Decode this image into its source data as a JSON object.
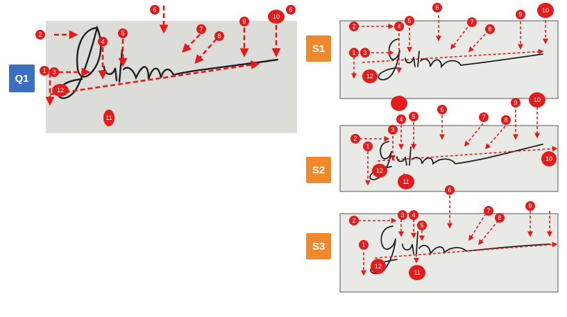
{
  "labels": {
    "q1": "Q1",
    "s1": "S1",
    "s2": "S2",
    "s3": "S3"
  },
  "colors": {
    "q1_label": "#3a6fc4",
    "s_label": "#f0892c",
    "marker": "#e31b1b",
    "q1_paper": "#dcddd8",
    "s_paper": "#e9e9e6",
    "ink": "#1c1c22"
  },
  "markers": {
    "q1": [
      "1",
      "2",
      "3",
      "4",
      "5",
      "6",
      "7",
      "8",
      "9",
      "10",
      "6",
      "11",
      "12"
    ],
    "s1": [
      "1",
      "2",
      "3",
      "4",
      "5",
      "6",
      "7",
      "8",
      "9",
      "10",
      "12"
    ],
    "s2": [
      "1",
      "2",
      "3",
      "4",
      "5",
      "6",
      "7",
      "8",
      "9",
      "10",
      "11",
      "12",
      "10"
    ],
    "s3": [
      "1",
      "2",
      "3",
      "4",
      "5",
      "6",
      "7",
      "8",
      "9",
      "11",
      "12"
    ]
  }
}
